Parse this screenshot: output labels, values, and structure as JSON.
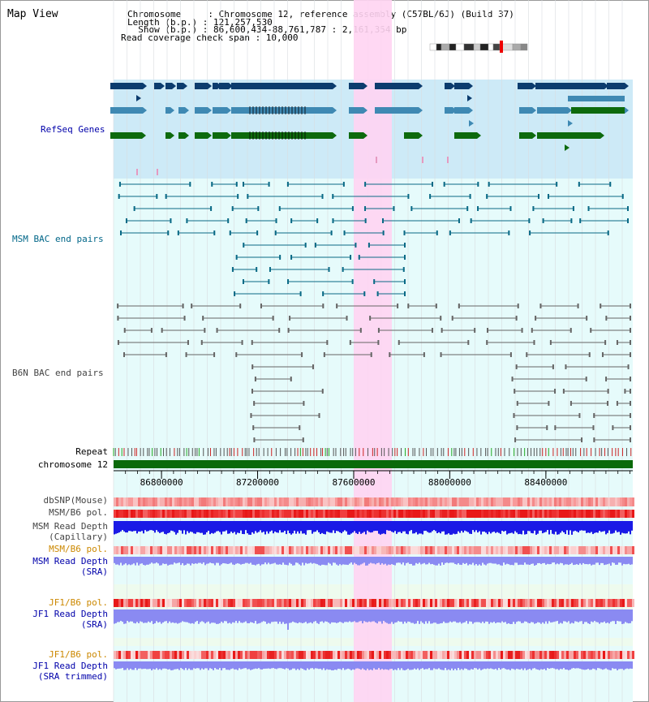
{
  "view": {
    "title": "Map View"
  },
  "header": {
    "line1": "Chromosome     : Chromosome 12, reference assembly (C57BL/6J) (Build 37)",
    "line2": "Length (b.p.) : 121,257,530",
    "line3": "  Show (b.p.) : 86,600,434-88,761,787 : 2,161,354 bp",
    "line4": "Read coverage check span : 10,000"
  },
  "tracks": {
    "refseq": "RefSeq Genes",
    "msm_bac": "MSM BAC end pairs",
    "b6n_bac": "B6N BAC end pairs",
    "repeat": "Repeat",
    "chromosome": "chromosome 12",
    "dbsnp": "dbSNP(Mouse)",
    "msm_pol1": "MSM/B6 pol.",
    "msm_depth_cap_1": "MSM Read Depth",
    "msm_depth_cap_2": "(Capillary)",
    "msm_pol2": "MSM/B6 pol.",
    "msm_depth_sra_1": "MSM Read Depth",
    "msm_depth_sra_2": "(SRA)",
    "jf1_pol1": "JF1/B6 pol.",
    "jf1_depth_sra_1": "JF1 Read Depth",
    "jf1_depth_sra_2": "(SRA)",
    "jf1_pol2": "JF1/B6 pol.",
    "jf1_depth_trim_1": "JF1 Read Depth",
    "jf1_depth_trim_2": "(SRA trimmed)"
  },
  "axis": {
    "ticks": [
      "86800000",
      "87200000",
      "87600000",
      "88000000",
      "88400000"
    ],
    "tick_values": [
      86800000,
      87200000,
      87600000,
      88000000,
      88400000
    ],
    "range": [
      86600434,
      88761787
    ]
  },
  "colors": {
    "refseq_bg": "#cdeaf7",
    "bac_bg": "#e6fbfb",
    "highlight": "#ffd4f2",
    "gene_navy": "#0c3c6e",
    "gene_steel": "#3f89b3",
    "gene_green": "#0d6a0d",
    "msm_pair": "#0a6a86",
    "b6n_pair": "#666666",
    "chromosome": "#0a6a0a",
    "depth_blue": "#1a1ae6",
    "depth_light": "#8a8af2",
    "label_blue": "#0000aa",
    "label_orange": "#cc8800",
    "label_teal": "#006688",
    "label_grey": "#444444"
  }
}
